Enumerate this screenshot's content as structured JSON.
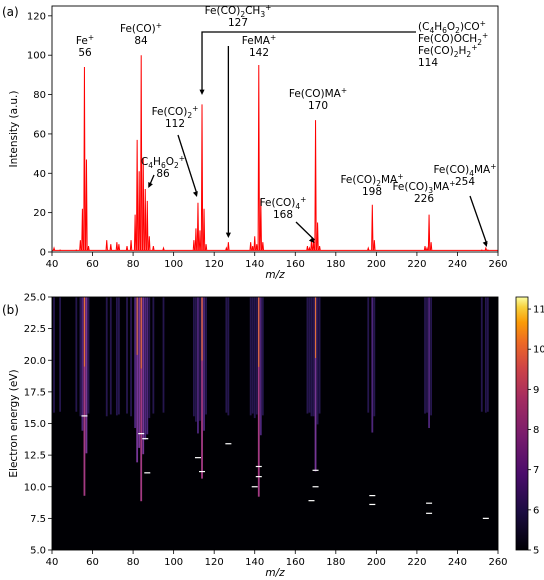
{
  "panels": {
    "a_label": "(a)",
    "b_label": "(b)"
  },
  "chart_data": [
    {
      "type": "line",
      "panel": "(a)",
      "xlabel": "m/z",
      "ylabel": "Intensity (a.u.)",
      "xlim": [
        40,
        260
      ],
      "ylim": [
        0,
        125
      ],
      "xticks": [
        40,
        60,
        80,
        100,
        120,
        140,
        160,
        180,
        200,
        220,
        240,
        260
      ],
      "yticks": [
        0,
        20,
        40,
        60,
        80,
        100,
        120
      ],
      "line_color": "#ff0000",
      "peaks": [
        {
          "x": 56,
          "y": 94
        },
        {
          "x": 57,
          "y": 47
        },
        {
          "x": 54,
          "y": 6
        },
        {
          "x": 55,
          "y": 22
        },
        {
          "x": 58,
          "y": 3
        },
        {
          "x": 41,
          "y": 2
        },
        {
          "x": 44,
          "y": 1
        },
        {
          "x": 52,
          "y": 1
        },
        {
          "x": 67,
          "y": 6
        },
        {
          "x": 69,
          "y": 4
        },
        {
          "x": 72,
          "y": 5
        },
        {
          "x": 73,
          "y": 4
        },
        {
          "x": 77,
          "y": 3
        },
        {
          "x": 79,
          "y": 6
        },
        {
          "x": 81,
          "y": 19
        },
        {
          "x": 82,
          "y": 57
        },
        {
          "x": 83,
          "y": 41
        },
        {
          "x": 84,
          "y": 100
        },
        {
          "x": 85,
          "y": 48
        },
        {
          "x": 86,
          "y": 32
        },
        {
          "x": 87,
          "y": 26
        },
        {
          "x": 88,
          "y": 8
        },
        {
          "x": 90,
          "y": 3
        },
        {
          "x": 95,
          "y": 2
        },
        {
          "x": 110,
          "y": 6
        },
        {
          "x": 111,
          "y": 12
        },
        {
          "x": 112,
          "y": 25
        },
        {
          "x": 113,
          "y": 11
        },
        {
          "x": 114,
          "y": 75
        },
        {
          "x": 115,
          "y": 22
        },
        {
          "x": 116,
          "y": 4
        },
        {
          "x": 126,
          "y": 2
        },
        {
          "x": 127,
          "y": 5
        },
        {
          "x": 138,
          "y": 5
        },
        {
          "x": 139,
          "y": 3
        },
        {
          "x": 140,
          "y": 8
        },
        {
          "x": 141,
          "y": 4
        },
        {
          "x": 142,
          "y": 95
        },
        {
          "x": 143,
          "y": 27
        },
        {
          "x": 144,
          "y": 5
        },
        {
          "x": 166,
          "y": 3
        },
        {
          "x": 167,
          "y": 2
        },
        {
          "x": 168,
          "y": 6
        },
        {
          "x": 169,
          "y": 6
        },
        {
          "x": 170,
          "y": 67
        },
        {
          "x": 171,
          "y": 15
        },
        {
          "x": 172,
          "y": 3
        },
        {
          "x": 196,
          "y": 2
        },
        {
          "x": 198,
          "y": 24
        },
        {
          "x": 199,
          "y": 6
        },
        {
          "x": 224,
          "y": 3
        },
        {
          "x": 225,
          "y": 2
        },
        {
          "x": 226,
          "y": 19
        },
        {
          "x": 227,
          "y": 5
        },
        {
          "x": 252,
          "y": 1
        },
        {
          "x": 254,
          "y": 2
        },
        {
          "x": 255,
          "y": 1
        }
      ],
      "annotations": [
        {
          "text": "Fe+\n56"
        },
        {
          "text": "Fe(CO)+\n84"
        },
        {
          "text": "Fe(CO)2CH3+\n127"
        },
        {
          "text": "FeMA+\n142"
        },
        {
          "text": "(C4H6O2)CO+\nFe(CO)OCH2+\nFe(CO)2H2+\n114"
        },
        {
          "text": "Fe(CO)2+\n112"
        },
        {
          "text": "C4H6O2+\n86"
        },
        {
          "text": "Fe(CO)MA+\n170"
        },
        {
          "text": "Fe(CO)4+\n168"
        },
        {
          "text": "Fe(CO)2MA+\n198"
        },
        {
          "text": "Fe(CO)3MA+\n226"
        },
        {
          "text": "Fe(CO)4MA+\n254"
        }
      ]
    },
    {
      "type": "heatmap",
      "panel": "(b)",
      "xlabel": "m/z",
      "ylabel": "Electron energy (eV)",
      "xlim": [
        40,
        260
      ],
      "ylim": [
        5,
        25
      ],
      "xticks": [
        40,
        60,
        80,
        100,
        120,
        140,
        160,
        180,
        200,
        220,
        240,
        260
      ],
      "yticks": [
        5.0,
        7.5,
        10.0,
        12.5,
        15.0,
        17.5,
        20.0,
        22.5,
        25.0
      ],
      "colorbar": {
        "min": 5,
        "max": 11.3,
        "ticks": [
          5,
          6,
          7,
          8,
          9,
          10,
          11
        ],
        "colormap": "inferno-like (black-purple-orange-yellow-white)"
      },
      "onset_markers": [
        {
          "x": 56,
          "y": 15.6
        },
        {
          "x": 84,
          "y": 14.2
        },
        {
          "x": 86,
          "y": 13.8
        },
        {
          "x": 87,
          "y": 11.1
        },
        {
          "x": 112,
          "y": 12.3
        },
        {
          "x": 114,
          "y": 11.2
        },
        {
          "x": 127,
          "y": 13.4
        },
        {
          "x": 140,
          "y": 10.0
        },
        {
          "x": 142,
          "y": 10.8
        },
        {
          "x": 142,
          "y": 11.6
        },
        {
          "x": 168,
          "y": 8.9
        },
        {
          "x": 170,
          "y": 10.0
        },
        {
          "x": 170,
          "y": 11.3
        },
        {
          "x": 198,
          "y": 9.3
        },
        {
          "x": 198,
          "y": 8.6
        },
        {
          "x": 226,
          "y": 8.7
        },
        {
          "x": 226,
          "y": 7.9
        },
        {
          "x": 254,
          "y": 7.5
        }
      ]
    }
  ]
}
